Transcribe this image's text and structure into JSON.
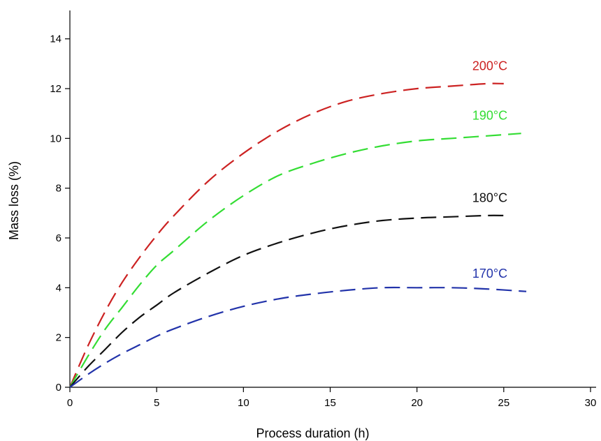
{
  "chart_data": {
    "type": "line",
    "xlabel": "Process duration (h)",
    "ylabel": "Mass loss (%)",
    "xlim": [
      0,
      30
    ],
    "ylim": [
      0,
      15
    ],
    "x_ticks": [
      0,
      5,
      10,
      15,
      20,
      25,
      30
    ],
    "y_ticks": [
      0,
      2,
      4,
      6,
      8,
      10,
      12,
      14
    ],
    "grid": false,
    "line_style": "dashed",
    "series": [
      {
        "name": "200°C",
        "color": "#cc2222",
        "x": [
          0,
          1,
          2,
          3,
          4,
          5,
          6,
          8,
          10,
          12,
          14,
          16,
          18,
          20,
          22,
          24,
          25
        ],
        "y": [
          0,
          1.6,
          3.0,
          4.2,
          5.2,
          6.1,
          6.9,
          8.3,
          9.4,
          10.3,
          11.0,
          11.5,
          11.8,
          12.0,
          12.1,
          12.2,
          12.2
        ]
      },
      {
        "name": "190°C",
        "color": "#33dd33",
        "x": [
          0,
          1,
          2,
          3,
          4,
          5,
          6,
          8,
          10,
          12,
          14,
          16,
          18,
          20,
          22,
          24,
          26
        ],
        "y": [
          0,
          1.2,
          2.3,
          3.2,
          4.1,
          4.9,
          5.5,
          6.7,
          7.7,
          8.5,
          9.0,
          9.4,
          9.7,
          9.9,
          10.0,
          10.1,
          10.2
        ]
      },
      {
        "name": "180°C",
        "color": "#111111",
        "x": [
          0,
          1,
          2,
          3,
          4,
          5,
          6,
          8,
          10,
          12,
          14,
          16,
          18,
          20,
          22,
          24,
          25
        ],
        "y": [
          0,
          0.8,
          1.5,
          2.2,
          2.8,
          3.3,
          3.8,
          4.6,
          5.3,
          5.8,
          6.2,
          6.5,
          6.7,
          6.8,
          6.85,
          6.9,
          6.9
        ]
      },
      {
        "name": "170°C",
        "color": "#2233aa",
        "x": [
          0,
          1,
          2,
          3,
          4,
          5,
          6,
          8,
          10,
          12,
          14,
          16,
          18,
          20,
          22,
          24,
          26.3
        ],
        "y": [
          0,
          0.5,
          0.95,
          1.35,
          1.7,
          2.05,
          2.35,
          2.85,
          3.25,
          3.55,
          3.75,
          3.9,
          4.0,
          4.0,
          4.0,
          3.95,
          3.85
        ]
      }
    ]
  }
}
